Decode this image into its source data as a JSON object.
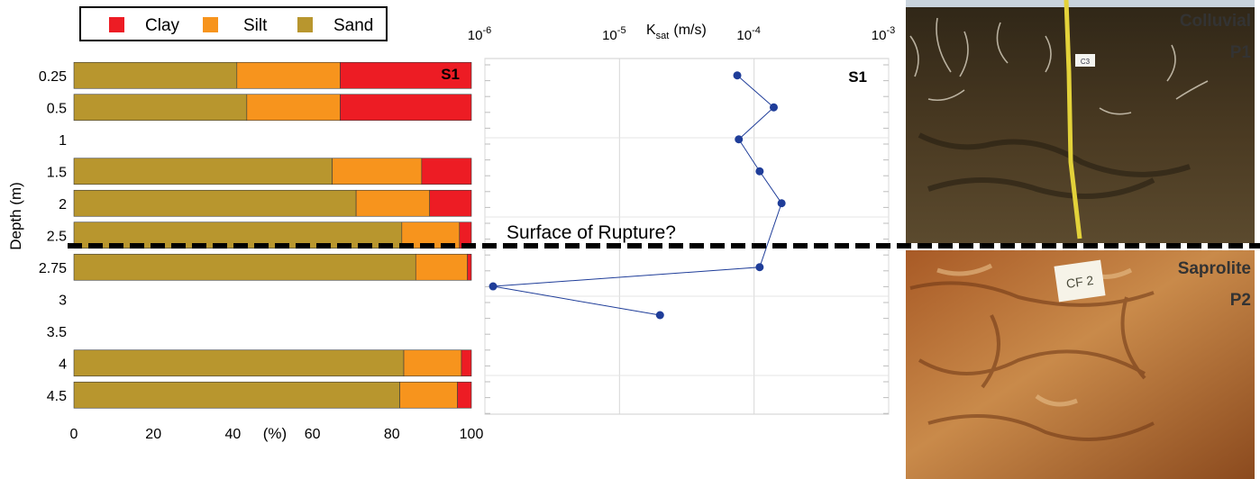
{
  "chart_data": [
    {
      "type": "bar",
      "orientation": "horizontal",
      "stacked": true,
      "panel_label": "S1",
      "legend": {
        "placement": "top-left",
        "entries": [
          "Clay",
          "Silt",
          "Sand"
        ]
      },
      "ylabel": "Depth (m)",
      "xlabel": "(%)",
      "xlim": [
        0,
        100
      ],
      "xticks": [
        "0",
        "20",
        "40",
        "60",
        "80",
        "100"
      ],
      "categories": [
        "0.25",
        "0.5",
        "1",
        "1.5",
        "2",
        "2.5",
        "2.75",
        "3",
        "3.5",
        "4",
        "4.5"
      ],
      "series": [
        {
          "name": "Sand",
          "color": "#b8962e",
          "values": [
            41,
            43.5,
            null,
            65,
            71,
            82.5,
            86,
            null,
            null,
            83,
            82
          ]
        },
        {
          "name": "Silt",
          "color": "#f7941d",
          "values": [
            26,
            23.5,
            null,
            22.5,
            18.5,
            14.5,
            13,
            null,
            null,
            14.5,
            14.5
          ]
        },
        {
          "name": "Clay",
          "color": "#ed1c24",
          "values": [
            33,
            33,
            null,
            12.5,
            10.5,
            3,
            1,
            null,
            null,
            2.5,
            3.5
          ]
        }
      ]
    },
    {
      "type": "scatter",
      "connected": true,
      "panel_label": "S1",
      "xlabel_main": "K",
      "xlabel_sub": "sat",
      "xlabel_unit": "(m/s)",
      "xscale": "log",
      "xlim": [
        1e-06,
        0.001
      ],
      "xticks": [
        {
          "base": "10",
          "exp": "-6"
        },
        {
          "base": "10",
          "exp": "-5"
        },
        {
          "base": "10",
          "exp": "-4"
        },
        {
          "base": "10",
          "exp": "-3"
        }
      ],
      "color": "#1f3d99",
      "points": [
        {
          "depth": 0.25,
          "k": 7.5e-05
        },
        {
          "depth": 0.5,
          "k": 0.00014
        },
        {
          "depth": 1.0,
          "k": 7.7e-05
        },
        {
          "depth": 1.5,
          "k": 0.00011
        },
        {
          "depth": 2.0,
          "k": 0.00016
        },
        {
          "depth": 2.75,
          "k": 0.00011
        },
        {
          "depth": 2.9,
          "k": 1.15e-06
        },
        {
          "depth": 3.25,
          "k": 2e-05
        }
      ]
    }
  ],
  "annotation": "Surface of Rupture?",
  "photos": [
    {
      "label": "Colluvial",
      "sublabel": "P1",
      "tag": "C3",
      "colors": [
        "#2f2617",
        "#4a3a22",
        "#5b4a2e"
      ]
    },
    {
      "label": "Saprolite",
      "sublabel": "P2",
      "tag": "CF 2",
      "colors": [
        "#a85a26",
        "#c98a4a",
        "#8b4a1e"
      ]
    }
  ]
}
